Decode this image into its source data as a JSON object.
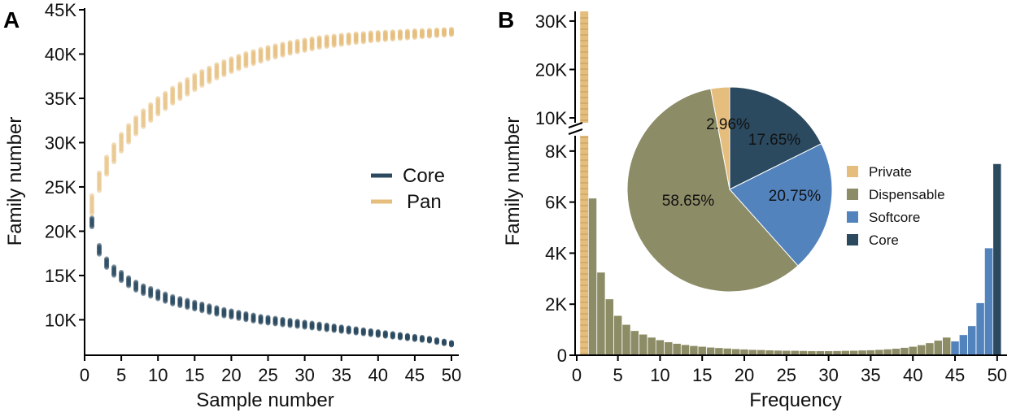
{
  "chart_data": [
    {
      "panel": "A",
      "type": "scatter",
      "title": "",
      "xlabel": "Sample number",
      "ylabel": "Family number",
      "xlim": [
        0,
        51
      ],
      "ylim": [
        6000,
        45000
      ],
      "xticks": [
        0,
        5,
        10,
        15,
        20,
        25,
        30,
        35,
        40,
        45,
        50
      ],
      "yticks": [
        10000,
        15000,
        20000,
        25000,
        30000,
        35000,
        40000,
        45000
      ],
      "ytick_labels": [
        "10K",
        "15K",
        "20K",
        "25K",
        "30K",
        "35K",
        "40K",
        "45K"
      ],
      "legend": "right-middle",
      "x": [
        1,
        2,
        3,
        4,
        5,
        6,
        7,
        8,
        9,
        10,
        11,
        12,
        13,
        14,
        15,
        16,
        17,
        18,
        19,
        20,
        21,
        22,
        23,
        24,
        25,
        26,
        27,
        28,
        29,
        30,
        31,
        32,
        33,
        34,
        35,
        36,
        37,
        38,
        39,
        40,
        41,
        42,
        43,
        44,
        45,
        46,
        47,
        48,
        49,
        50
      ],
      "series": [
        {
          "name": "Core",
          "color": "#2b4a60",
          "values": [
            21000,
            17900,
            16400,
            15500,
            14900,
            14300,
            13800,
            13400,
            13100,
            12800,
            12500,
            12200,
            12000,
            11800,
            11600,
            11400,
            11200,
            11000,
            10800,
            10650,
            10500,
            10350,
            10200,
            10050,
            9950,
            9850,
            9750,
            9650,
            9550,
            9450,
            9350,
            9250,
            9150,
            9050,
            8950,
            8850,
            8750,
            8650,
            8550,
            8450,
            8350,
            8250,
            8150,
            8050,
            7950,
            7850,
            7750,
            7600,
            7450,
            7300
          ],
          "spread": 500
        },
        {
          "name": "Pan",
          "color": "#e5bd7c",
          "values": [
            23000,
            25600,
            27400,
            28800,
            30000,
            31000,
            31900,
            32700,
            33400,
            34100,
            34700,
            35300,
            35800,
            36300,
            36800,
            37250,
            37650,
            38050,
            38400,
            38750,
            39050,
            39350,
            39600,
            39850,
            40100,
            40300,
            40500,
            40700,
            40850,
            41000,
            41150,
            41300,
            41400,
            41500,
            41600,
            41700,
            41800,
            41850,
            41950,
            42000,
            42050,
            42100,
            42150,
            42200,
            42250,
            42300,
            42350,
            42400,
            42450,
            42500
          ],
          "spread": 1000
        }
      ]
    },
    {
      "panel": "B",
      "type": "bar",
      "title": "",
      "xlabel": "Frequency",
      "ylabel": "Family number",
      "xticks": [
        0,
        5,
        10,
        15,
        20,
        25,
        30,
        35,
        40,
        45,
        50
      ],
      "ylim_lower": [
        0,
        8600
      ],
      "ylim_upper": [
        9000,
        32000
      ],
      "yticks_lower": [
        0,
        2000,
        4000,
        6000,
        8000
      ],
      "ytick_labels_lower": [
        "0",
        "2K",
        "4K",
        "6K",
        "8K"
      ],
      "yticks_upper": [
        10000,
        20000,
        30000
      ],
      "ytick_labels_upper": [
        "10K",
        "20K",
        "30K"
      ],
      "categories": [
        1,
        2,
        3,
        4,
        5,
        6,
        7,
        8,
        9,
        10,
        11,
        12,
        13,
        14,
        15,
        16,
        17,
        18,
        19,
        20,
        21,
        22,
        23,
        24,
        25,
        26,
        27,
        28,
        29,
        30,
        31,
        32,
        33,
        34,
        35,
        36,
        37,
        38,
        39,
        40,
        41,
        42,
        43,
        44,
        45,
        46,
        47,
        48,
        49,
        50
      ],
      "values": [
        32000,
        6150,
        3250,
        2200,
        1550,
        1200,
        960,
        820,
        700,
        600,
        520,
        460,
        410,
        370,
        340,
        310,
        290,
        270,
        250,
        235,
        220,
        210,
        200,
        190,
        185,
        180,
        175,
        170,
        168,
        170,
        172,
        178,
        185,
        195,
        205,
        220,
        240,
        265,
        300,
        340,
        400,
        480,
        580,
        700,
        550,
        800,
        1150,
        2050,
        4200,
        7500
      ],
      "bar_groups": [
        "Private",
        "Dispensable",
        "Dispensable",
        "Dispensable",
        "Dispensable",
        "Dispensable",
        "Dispensable",
        "Dispensable",
        "Dispensable",
        "Dispensable",
        "Dispensable",
        "Dispensable",
        "Dispensable",
        "Dispensable",
        "Dispensable",
        "Dispensable",
        "Dispensable",
        "Dispensable",
        "Dispensable",
        "Dispensable",
        "Dispensable",
        "Dispensable",
        "Dispensable",
        "Dispensable",
        "Dispensable",
        "Dispensable",
        "Dispensable",
        "Dispensable",
        "Dispensable",
        "Dispensable",
        "Dispensable",
        "Dispensable",
        "Dispensable",
        "Dispensable",
        "Dispensable",
        "Dispensable",
        "Dispensable",
        "Dispensable",
        "Dispensable",
        "Dispensable",
        "Dispensable",
        "Dispensable",
        "Dispensable",
        "Dispensable",
        "Softcore",
        "Softcore",
        "Softcore",
        "Softcore",
        "Softcore",
        "Core"
      ],
      "pie": {
        "type": "pie",
        "slices": [
          {
            "name": "Core",
            "value": 17.65,
            "label": "17.65%",
            "color": "#2b4a60"
          },
          {
            "name": "Softcore",
            "value": 20.75,
            "label": "20.75%",
            "color": "#5283bd"
          },
          {
            "name": "Dispensable",
            "value": 58.65,
            "label": "58.65%",
            "color": "#8c8c66"
          },
          {
            "name": "Private",
            "value": 2.96,
            "label": "2.96%",
            "color": "#e5bd7c"
          }
        ],
        "legend": [
          "Private",
          "Dispensable",
          "Softcore",
          "Core"
        ]
      }
    }
  ]
}
